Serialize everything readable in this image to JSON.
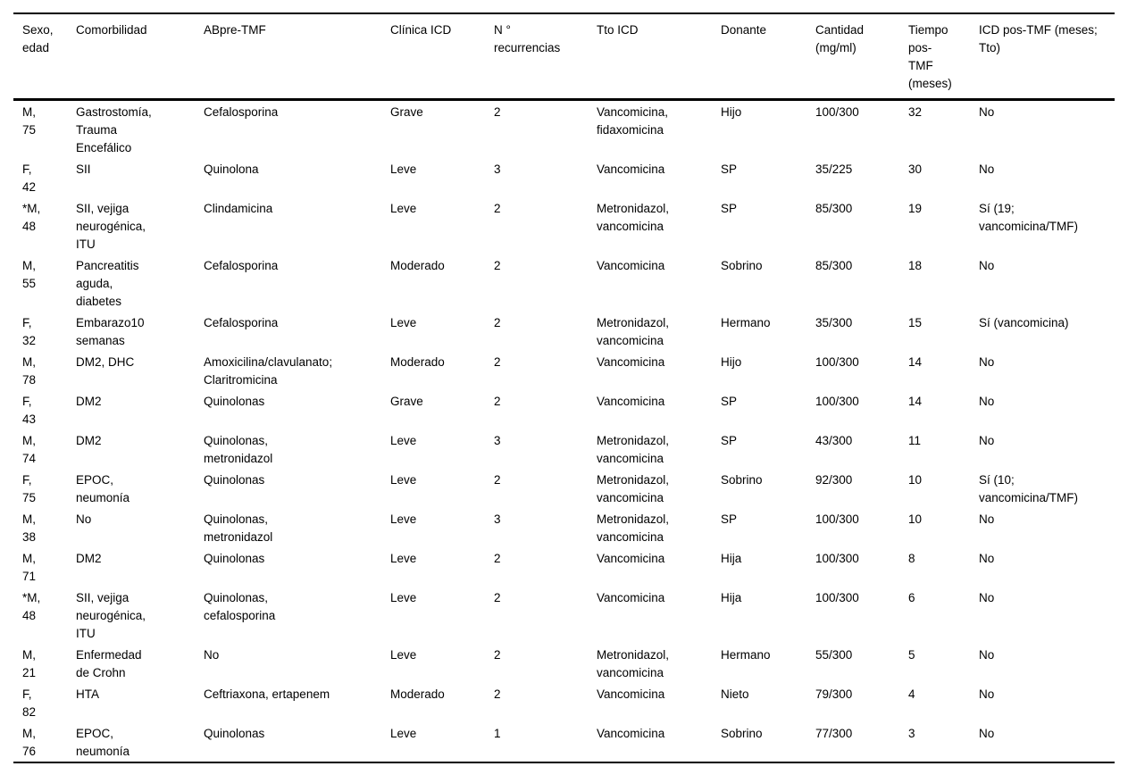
{
  "colors": {
    "background": "#ffffff",
    "text": "#000000",
    "border": "#000000"
  },
  "table": {
    "columns": [
      "Sexo,\nedad",
      "Comorbilidad",
      "ABpre-TMF",
      "Clínica ICD",
      "N °\nrecurrencias",
      "Tto ICD",
      "Donante",
      "Cantidad\n(mg/ml)",
      "Tiempo\npos-\nTMF\n(meses)",
      "ICD pos-TMF (meses;\nTto)"
    ],
    "rows": [
      [
        "M,\n75",
        "Gastrostomía,\nTrauma\nEncefálico",
        "Cefalosporina",
        "Grave",
        "2",
        "Vancomicina,\nfidaxomicina",
        "Hijo",
        "100/300",
        "32",
        "No"
      ],
      [
        "F,\n42",
        "SII",
        "Quinolona",
        "Leve",
        "3",
        "Vancomicina",
        "SP",
        "35/225",
        "30",
        "No"
      ],
      [
        "*M,\n48",
        "SII, vejiga\nneurogénica,\nITU",
        "Clindamicina",
        "Leve",
        "2",
        "Metronidazol,\nvancomicina",
        "SP",
        "85/300",
        "19",
        "Sí (19;\nvancomicina/TMF)"
      ],
      [
        "M,\n55",
        "Pancreatitis\naguda,\ndiabetes",
        "Cefalosporina",
        "Moderado",
        "2",
        "Vancomicina",
        "Sobrino",
        "85/300",
        "18",
        "No"
      ],
      [
        "F,\n32",
        "Embarazo10\nsemanas",
        "Cefalosporina",
        "Leve",
        "2",
        "Metronidazol,\nvancomicina",
        "Hermano",
        "35/300",
        "15",
        "Sí (vancomicina)"
      ],
      [
        "M,\n78",
        "DM2, DHC",
        "Amoxicilina/clavulanato;\nClaritromicina",
        "Moderado",
        "2",
        "Vancomicina",
        "Hijo",
        "100/300",
        "14",
        "No"
      ],
      [
        "F,\n43",
        "DM2",
        "Quinolonas",
        "Grave",
        "2",
        "Vancomicina",
        "SP",
        "100/300",
        "14",
        "No"
      ],
      [
        "M,\n74",
        "DM2",
        "Quinolonas,\nmetronidazol",
        "Leve",
        "3",
        "Metronidazol,\nvancomicina",
        "SP",
        "43/300",
        "11",
        "No"
      ],
      [
        "F,\n75",
        "EPOC,\nneumonía",
        "Quinolonas",
        "Leve",
        "2",
        "Metronidazol,\nvancomicina",
        "Sobrino",
        "92/300",
        "10",
        "Sí (10;\nvancomicina/TMF)"
      ],
      [
        "M,\n38",
        "No",
        "Quinolonas,\nmetronidazol",
        "Leve",
        "3",
        "Metronidazol,\nvancomicina",
        "SP",
        "100/300",
        "10",
        "No"
      ],
      [
        "M,\n71",
        "DM2",
        "Quinolonas",
        "Leve",
        "2",
        "Vancomicina",
        "Hija",
        "100/300",
        "8",
        "No"
      ],
      [
        "*M,\n48",
        "SII, vejiga\nneurogénica,\nITU",
        "Quinolonas,\ncefalosporina",
        "Leve",
        "2",
        "Vancomicina",
        "Hija",
        "100/300",
        "6",
        "No"
      ],
      [
        "M,\n21",
        "Enfermedad\nde Crohn",
        "No",
        "Leve",
        "2",
        "Metronidazol,\nvancomicina",
        "Hermano",
        "55/300",
        "5",
        "No"
      ],
      [
        "F,\n82",
        "HTA",
        "Ceftriaxona, ertapenem",
        "Moderado",
        "2",
        "Vancomicina",
        "Nieto",
        "79/300",
        "4",
        "No"
      ],
      [
        "M,\n76",
        "EPOC,\nneumonía",
        "Quinolonas",
        "Leve",
        "1",
        "Vancomicina",
        "Sobrino",
        "77/300",
        "3",
        "No"
      ]
    ]
  }
}
